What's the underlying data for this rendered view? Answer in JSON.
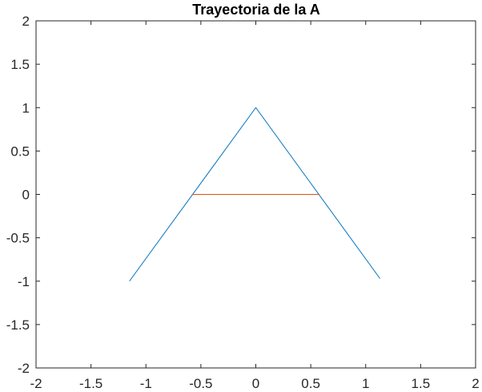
{
  "chart_data": {
    "type": "line",
    "title": "Trayectoria de la A",
    "xlabel": "",
    "ylabel": "",
    "xlim": [
      -2,
      2
    ],
    "ylim": [
      -2,
      2
    ],
    "x_ticks": [
      -2,
      -1.5,
      -1,
      -0.5,
      0,
      0.5,
      1,
      1.5,
      2
    ],
    "y_ticks": [
      -2,
      -1.5,
      -1,
      -0.5,
      0,
      0.5,
      1,
      1.5,
      2
    ],
    "x_tick_labels": [
      "-2",
      "-1.5",
      "-1",
      "-0.5",
      "0",
      "0.5",
      "1",
      "1.5",
      "2"
    ],
    "y_tick_labels": [
      "-2",
      "-1.5",
      "-1",
      "-0.5",
      "0",
      "0.5",
      "1",
      "1.5",
      "2"
    ],
    "grid": false,
    "legend": "none",
    "series": [
      {
        "color": "#0072bd",
        "x": [
          -1.15,
          0,
          1.13
        ],
        "y": [
          -1,
          1,
          -0.97
        ]
      },
      {
        "color": "#d95319",
        "x": [
          -0.58,
          0.58
        ],
        "y": [
          0,
          0
        ]
      }
    ]
  }
}
